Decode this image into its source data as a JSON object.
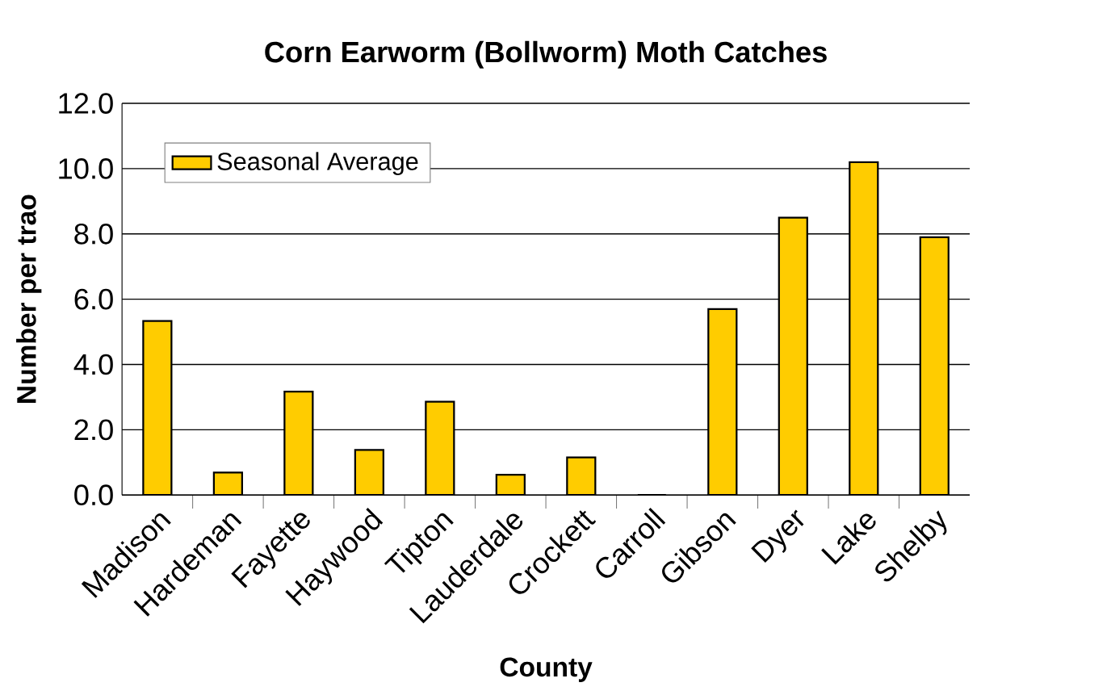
{
  "chart_data": {
    "type": "bar",
    "title": "Corn Earworm (Bollworm) Moth Catches",
    "xlabel": "County",
    "ylabel": "Number per trao",
    "categories": [
      "Madison",
      "Hardeman",
      "Fayette",
      "Haywood",
      "Tipton",
      "Lauderdale",
      "Crockett",
      "Carroll",
      "Gibson",
      "Dyer",
      "Lake",
      "Shelby"
    ],
    "series": [
      {
        "name": "Seasonal Average",
        "color": "#ffcc00",
        "values": [
          5.33,
          0.69,
          3.17,
          1.38,
          2.86,
          0.62,
          1.15,
          0,
          5.7,
          8.5,
          10.2,
          7.9
        ]
      }
    ],
    "ylim": [
      0,
      12
    ],
    "yticks": [
      {
        "value": 0,
        "label": "0.0"
      },
      {
        "value": 2,
        "label": "2.0"
      },
      {
        "value": 4,
        "label": "4.0"
      },
      {
        "value": 6,
        "label": "6.0"
      },
      {
        "value": 8,
        "label": "8.0"
      },
      {
        "value": 10,
        "label": "10.0"
      },
      {
        "value": 12,
        "label": "12.0"
      }
    ],
    "grid": "y",
    "legend": "top left"
  }
}
